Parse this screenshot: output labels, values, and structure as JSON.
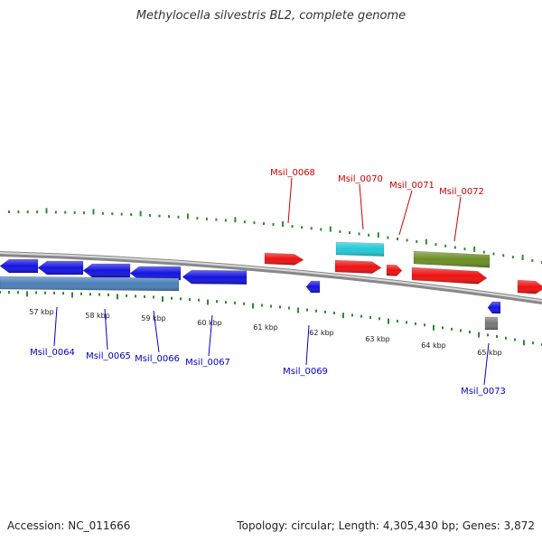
{
  "title": "Methylocella silvestris BL2, complete genome",
  "footer": {
    "accession": "Accession: NC_011666",
    "summary": "Topology: circular; Length: 4,305,430 bp; Genes: 3,872"
  },
  "colors": {
    "backbone": "#7a7a7a",
    "tick": "#2e8b2e",
    "forward_label": "#cc0000",
    "reverse_label": "#0000cc"
  },
  "ruler_ticks": [
    {
      "label": "57 kbp"
    },
    {
      "label": "58 kbp"
    },
    {
      "label": "59 kbp"
    },
    {
      "label": "60 kbp"
    },
    {
      "label": "61 kbp"
    },
    {
      "label": "62 kbp"
    },
    {
      "label": "63 kbp"
    },
    {
      "label": "64 kbp"
    },
    {
      "label": "65 kbp"
    }
  ],
  "genes_forward": [
    {
      "id": "g68",
      "label": "Msil_0068",
      "color": "#ee1111",
      "strand": "+"
    },
    {
      "id": "g70",
      "label": "Msil_0070",
      "color": "#22c8d8",
      "strand": "+"
    },
    {
      "id": "g70b",
      "label": "",
      "color": "#ee1111",
      "strand": "+"
    },
    {
      "id": "g71",
      "label": "Msil_0071",
      "color": "#ee1111",
      "strand": "+"
    },
    {
      "id": "g72",
      "label": "Msil_0072",
      "color": "#6b8e23",
      "strand": "+"
    },
    {
      "id": "g72b",
      "label": "",
      "color": "#ee1111",
      "strand": "+"
    },
    {
      "id": "g74",
      "label": "",
      "color": "#ee1111",
      "strand": "+"
    }
  ],
  "genes_reverse": [
    {
      "id": "g64",
      "label": "Msil_0064",
      "color": "#1414e0",
      "strand": "-"
    },
    {
      "id": "g65",
      "label": "Msil_0065",
      "color": "#1414e0",
      "strand": "-"
    },
    {
      "id": "g66",
      "label": "Msil_0066",
      "color": "#1414e0",
      "strand": "-"
    },
    {
      "id": "g67",
      "label": "Msil_0067",
      "color": "#1414e0",
      "strand": "-"
    },
    {
      "id": "g69",
      "label": "Msil_0069",
      "color": "#1414e0",
      "strand": "-"
    },
    {
      "id": "g73",
      "label": "Msil_0073",
      "color": "#1414e0",
      "strand": "-"
    },
    {
      "id": "gRNA",
      "label": "",
      "color": "#4a80b8",
      "strand": "-"
    },
    {
      "id": "gpseudo",
      "label": "",
      "color": "#777777",
      "strand": "-"
    }
  ]
}
